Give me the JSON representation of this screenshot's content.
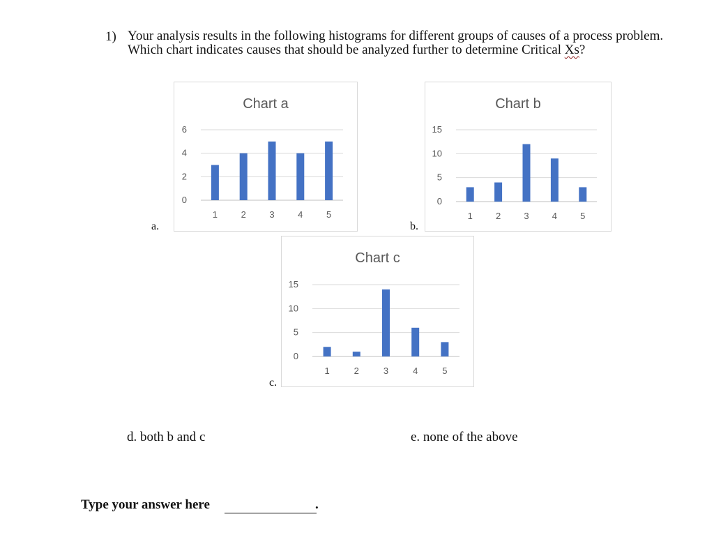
{
  "question": {
    "number": "1)",
    "text_before": "Your analysis results in the following histograms for different groups of causes of a process problem.  Which chart indicates causes that should be analyzed further to determine Critical ",
    "text_xs": "Xs",
    "text_after": "?"
  },
  "choices": {
    "a": "a.",
    "b": "b.",
    "c": "c.",
    "d": "d. both b and c",
    "e": "e. none of the above"
  },
  "answer": {
    "label": "Type your answer here",
    "period": "."
  },
  "bar_color": "#4472c4",
  "chart_data": [
    {
      "type": "bar",
      "title": "Chart a",
      "categories": [
        "1",
        "2",
        "3",
        "4",
        "5"
      ],
      "values": [
        3,
        4,
        5,
        4,
        5
      ],
      "ylim": [
        0,
        6
      ],
      "yticks": [
        "0",
        "2",
        "4",
        "6"
      ],
      "grid": true
    },
    {
      "type": "bar",
      "title": "Chart b",
      "categories": [
        "1",
        "2",
        "3",
        "4",
        "5"
      ],
      "values": [
        3,
        4,
        12,
        9,
        3
      ],
      "ylim": [
        0,
        15
      ],
      "yticks": [
        "0",
        "5",
        "10",
        "15"
      ],
      "grid": true
    },
    {
      "type": "bar",
      "title": "Chart c",
      "categories": [
        "1",
        "2",
        "3",
        "4",
        "5"
      ],
      "values": [
        2,
        1,
        14,
        6,
        3
      ],
      "ylim": [
        0,
        15
      ],
      "yticks": [
        "0",
        "5",
        "10",
        "15"
      ],
      "grid": true
    }
  ]
}
